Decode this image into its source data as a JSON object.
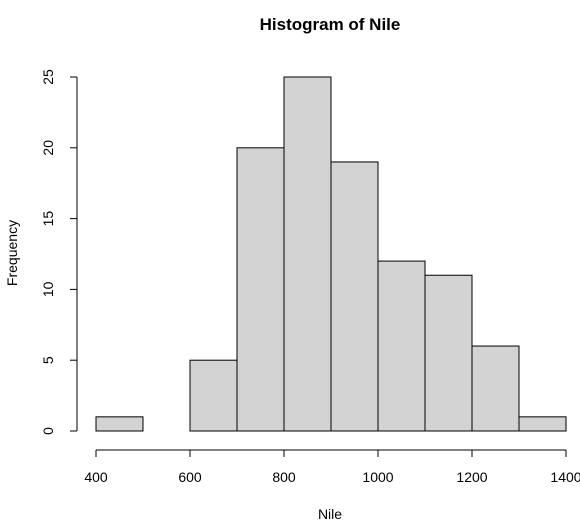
{
  "chart_data": {
    "type": "bar",
    "title": "Histogram of Nile",
    "xlabel": "Nile",
    "ylabel": "Frequency",
    "bin_edges": [
      400,
      500,
      600,
      700,
      800,
      900,
      1000,
      1100,
      1200,
      1300,
      1400
    ],
    "values": [
      1,
      0,
      5,
      20,
      25,
      19,
      12,
      11,
      6,
      1
    ],
    "xlim": [
      400,
      1400
    ],
    "ylim": [
      0,
      25
    ],
    "xticks": [
      400,
      600,
      800,
      1000,
      1200,
      1400
    ],
    "yticks": [
      0,
      5,
      10,
      15,
      20,
      25
    ],
    "bar_fill": "#d3d3d3",
    "bar_stroke": "#000000",
    "grid": false
  }
}
